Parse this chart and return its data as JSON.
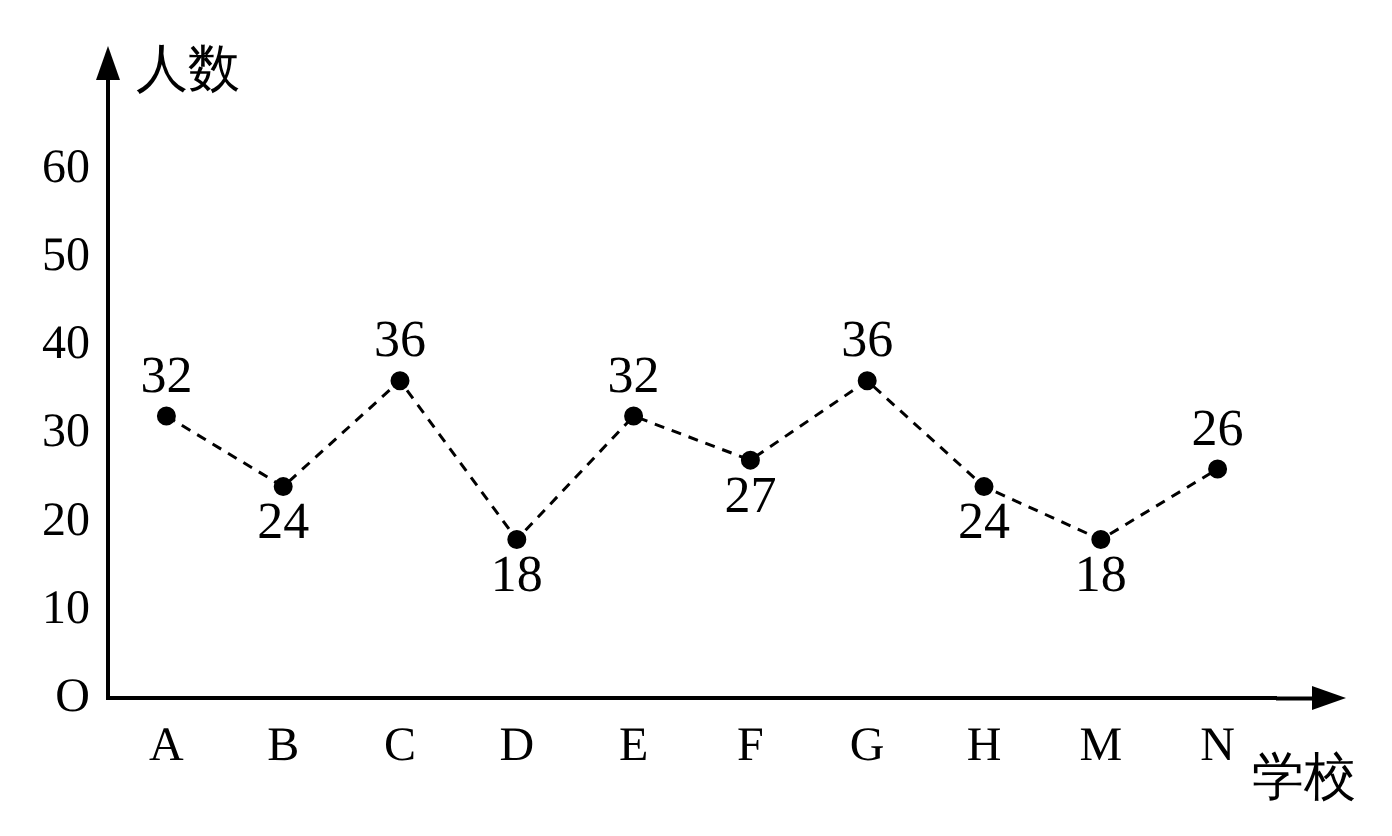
{
  "chart_data": {
    "type": "line",
    "xlabel": "学校",
    "ylabel": "人数",
    "categories": [
      "A",
      "B",
      "C",
      "D",
      "E",
      "F",
      "G",
      "H",
      "M",
      "N"
    ],
    "series": [
      {
        "color": "#000000",
        "values": [
          32,
          24,
          36,
          18,
          32,
          27,
          36,
          24,
          18,
          26
        ]
      }
    ],
    "ylim": [
      0,
      66
    ],
    "yticks": [
      {
        "value": 0,
        "label": "O"
      },
      10,
      20,
      30,
      40,
      50,
      60
    ],
    "data_labels": true,
    "grid": false,
    "legend": false,
    "marker": "circle",
    "line_style": "dashed"
  }
}
